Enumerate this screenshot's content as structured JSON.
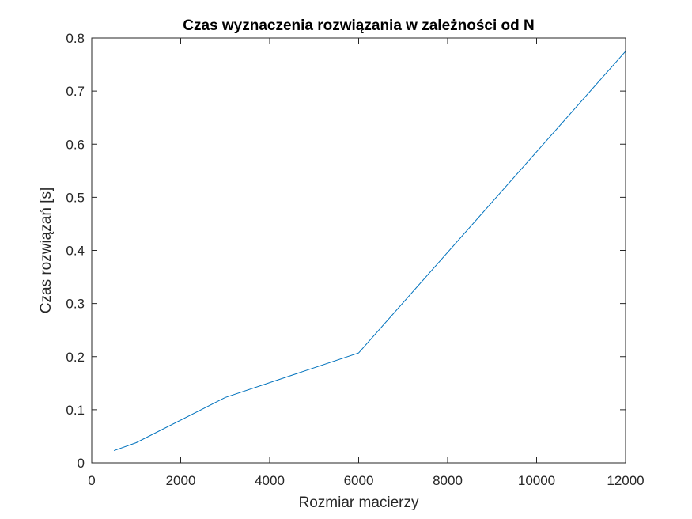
{
  "chart_data": {
    "type": "line",
    "title": "Czas wyznaczenia rozwiązania w zależności od N",
    "xlabel": "Rozmiar macierzy",
    "ylabel": "Czas rozwiązań [s]",
    "xlim": [
      0,
      12000
    ],
    "ylim": [
      0,
      0.8
    ],
    "xticks": [
      0,
      2000,
      4000,
      6000,
      8000,
      10000,
      12000
    ],
    "yticks": [
      0,
      0.1,
      0.2,
      0.3,
      0.4,
      0.5,
      0.6,
      0.7,
      0.8
    ],
    "grid": false,
    "series": [
      {
        "color": "#0072bd",
        "x": [
          500,
          1000,
          3000,
          6000,
          12000
        ],
        "y": [
          0.023,
          0.038,
          0.123,
          0.207,
          0.775
        ]
      }
    ]
  }
}
